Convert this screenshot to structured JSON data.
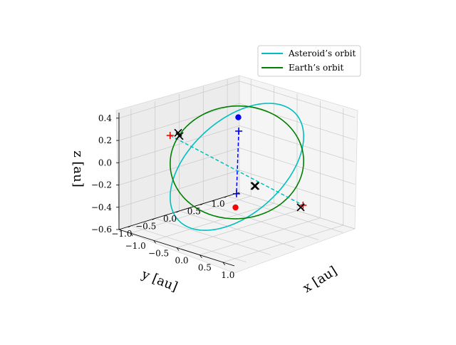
{
  "chart_data": {
    "type": "line3d",
    "title": "",
    "xlabel": "x [au]",
    "ylabel": "y [au]",
    "zlabel": "z [au]",
    "xlim": [
      -1.25,
      1.25
    ],
    "ylim": [
      -1.25,
      1.25
    ],
    "zlim": [
      -0.6,
      0.45
    ],
    "x_ticks": [
      "−1.0",
      "−0.5",
      "0.0",
      "0.5",
      "1.0"
    ],
    "y_ticks": [
      "−1.0",
      "−0.5",
      "0.0",
      "0.5",
      "1.0"
    ],
    "z_ticks": [
      "−0.6",
      "−0.4",
      "−0.2",
      "0.0",
      "0.2",
      "0.4"
    ],
    "x_tick_values": [
      -1.0,
      -0.5,
      0.0,
      0.5,
      1.0
    ],
    "y_tick_values": [
      -1.0,
      -0.5,
      0.0,
      0.5,
      1.0
    ],
    "z_tick_values": [
      -0.6,
      -0.4,
      -0.2,
      0.0,
      0.2,
      0.4
    ],
    "grid": true,
    "legend_position": "upper-right",
    "series": [
      {
        "name": "Asteroid’s orbit",
        "color": "#00bfbf"
      },
      {
        "name": "Earth’s orbit",
        "color": "#008000"
      }
    ],
    "markers": [
      {
        "kind": "blue-dot",
        "color": "#0000ff",
        "x": -0.7,
        "y": 0.7,
        "z": 0.22
      },
      {
        "kind": "red-dot",
        "color": "#ff0000",
        "x": 0.7,
        "y": -0.7,
        "z": -0.22
      },
      {
        "kind": "blue-plus",
        "color": "#0000ff",
        "x": -0.68,
        "y": 0.69,
        "z": 0.1
      },
      {
        "kind": "blue-plus",
        "color": "#0000ff",
        "x": 0.7,
        "y": -0.68,
        "z": -0.1
      },
      {
        "kind": "red-plus",
        "color": "#ff0000",
        "x": -0.8,
        "y": -0.62,
        "z": 0.22
      },
      {
        "kind": "red-plus",
        "color": "#ff0000",
        "x": 0.65,
        "y": 0.75,
        "z": -0.4
      },
      {
        "kind": "black-x",
        "color": "#000000",
        "x": -0.96,
        "y": -0.3,
        "z": 0.18
      },
      {
        "kind": "black-x",
        "color": "#000000",
        "x": -0.95,
        "y": -0.28,
        "z": 0.15
      },
      {
        "kind": "black-x",
        "color": "#000000",
        "x": 0.35,
        "y": 0.03,
        "z": -0.17
      },
      {
        "kind": "black-x",
        "color": "#000000",
        "x": 0.36,
        "y": 0.04,
        "z": -0.17
      },
      {
        "kind": "black-x",
        "color": "#000000",
        "x": 0.62,
        "y": 0.73,
        "z": -0.42
      }
    ],
    "dashed_lines": [
      {
        "color": "#0000ff",
        "from": [
          -0.68,
          0.69,
          0.1
        ],
        "to": [
          0.7,
          -0.68,
          -0.1
        ]
      },
      {
        "color": "#00bfbf",
        "from": [
          -0.8,
          -0.62,
          0.22
        ],
        "to": [
          0.65,
          0.75,
          -0.4
        ]
      }
    ]
  }
}
